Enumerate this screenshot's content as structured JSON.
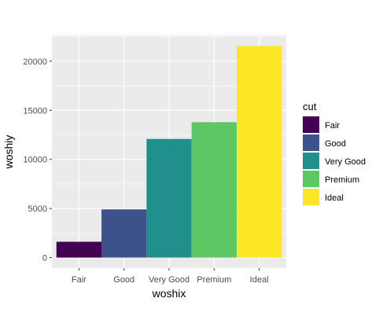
{
  "chart_data": {
    "type": "bar",
    "categories": [
      "Fair",
      "Good",
      "Very Good",
      "Premium",
      "Ideal"
    ],
    "values": [
      1610,
      4906,
      12082,
      13791,
      21551
    ],
    "colors": [
      "#440154",
      "#3B528B",
      "#21908C",
      "#5DC863",
      "#FDE725"
    ],
    "xlabel": "woshix",
    "ylabel": "woshiy",
    "ylim": [
      -1077.55,
      22628.55
    ],
    "yticks": [
      0,
      5000,
      10000,
      15000,
      20000
    ],
    "ytick_labels": [
      "0",
      "5000",
      "10000",
      "15000",
      "20000"
    ],
    "grid": true,
    "panel_background": "#EBEBEB",
    "legend": {
      "title": "cut",
      "position": "right",
      "entries": [
        "Fair",
        "Good",
        "Very Good",
        "Premium",
        "Ideal"
      ]
    }
  }
}
